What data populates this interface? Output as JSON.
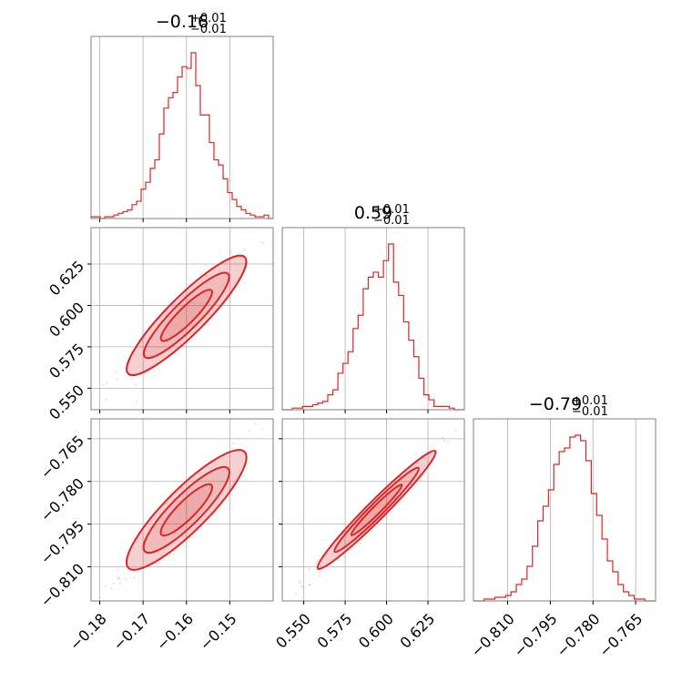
{
  "chart_data": {
    "type": "corner",
    "color": "#d62728",
    "parameters": [
      {
        "title_main": "−0.16",
        "title_sup": "+0.01",
        "title_sub": "−0.01",
        "median": -0.16,
        "range": [
          -0.182,
          -0.14
        ],
        "ticks": [
          -0.18,
          -0.17,
          -0.16,
          -0.15
        ],
        "tick_labels": [
          "−0.18",
          "−0.17",
          "−0.16",
          "−0.15"
        ],
        "hist": [
          1,
          1,
          0,
          1,
          1,
          2,
          3,
          4,
          5,
          8,
          10,
          17,
          21,
          29,
          34,
          49,
          64,
          70,
          73,
          82,
          88,
          87,
          96,
          77,
          60,
          60,
          44,
          34,
          31,
          23,
          15,
          11,
          7,
          5,
          3,
          2,
          1,
          1,
          2,
          0
        ]
      },
      {
        "title_main": "0.59",
        "title_sup": "+0.01",
        "title_sub": "−0.01",
        "median": 0.594,
        "range": [
          0.537,
          0.647
        ],
        "ticks": [
          0.55,
          0.575,
          0.6,
          0.625
        ],
        "tick_labels": [
          "0.550",
          "0.575",
          "0.600",
          "0.625"
        ],
        "hist": [
          0,
          0,
          1,
          1,
          2,
          2,
          3,
          4,
          5,
          9,
          12,
          22,
          28,
          35,
          49,
          57,
          73,
          80,
          83,
          80,
          90,
          100,
          77,
          69,
          53,
          42,
          32,
          19,
          9,
          6,
          2,
          2,
          2,
          1,
          0,
          0
        ]
      },
      {
        "title_main": "−0.79",
        "title_sup": "+0.01",
        "title_sub": "−0.01",
        "median": -0.79,
        "range": [
          -0.822,
          -0.758
        ],
        "ticks": [
          -0.81,
          -0.795,
          -0.78,
          -0.765
        ],
        "tick_labels": [
          "−0.810",
          "−0.795",
          "−0.780",
          "−0.765"
        ],
        "hist": [
          0,
          0,
          1,
          1,
          2,
          2,
          3,
          5,
          9,
          12,
          19,
          30,
          44,
          52,
          61,
          75,
          82,
          84,
          90,
          91,
          88,
          77,
          59,
          47,
          34,
          22,
          16,
          9,
          5,
          3,
          1,
          1,
          0,
          0
        ]
      }
    ],
    "correlations": {
      "p1_p0": 0.96,
      "p2_p0": 0.95,
      "p2_p1": 0.99
    },
    "samples": 3000,
    "grid": true,
    "levels": 3
  }
}
